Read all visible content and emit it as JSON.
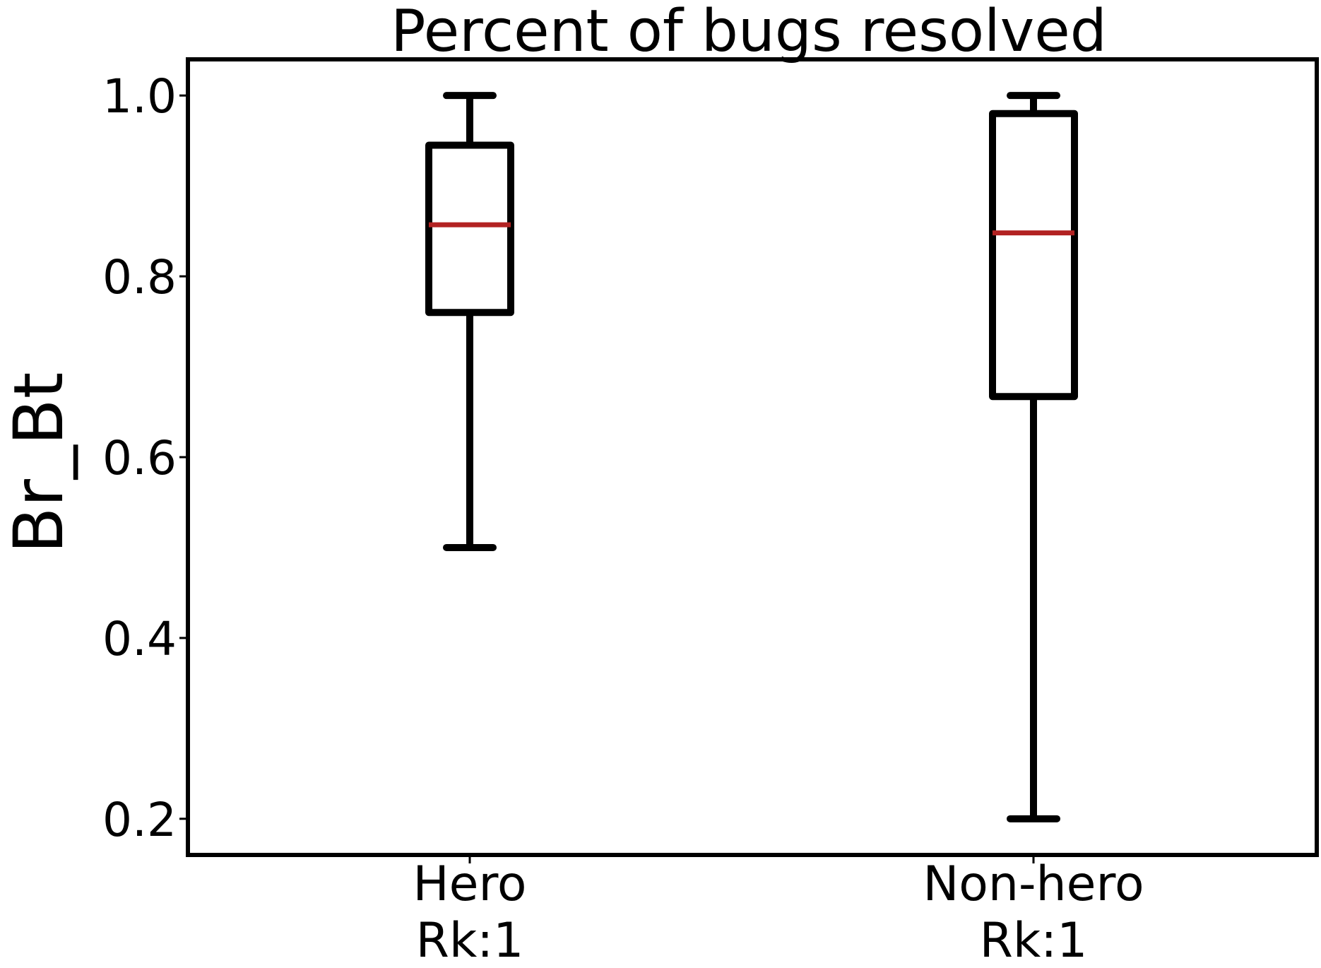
{
  "chart_data": {
    "type": "box",
    "title": "Percent of bugs resolved",
    "ylabel": "Br_Bt",
    "xlabel": "",
    "ylim": [
      0.16,
      1.04
    ],
    "yticks": [
      "0.2",
      "0.4",
      "0.6",
      "0.8",
      "1.0"
    ],
    "grid": false,
    "categories": [
      {
        "line1": "Hero",
        "line2": "Rk:1"
      },
      {
        "line1": "Non-hero",
        "line2": "Rk:1"
      }
    ],
    "boxes": [
      {
        "whisker_low": 0.5,
        "q1": 0.76,
        "median": 0.857,
        "q3": 0.945,
        "whisker_high": 1.0
      },
      {
        "whisker_low": 0.2,
        "q1": 0.667,
        "median": 0.848,
        "q3": 0.98,
        "whisker_high": 1.0
      }
    ],
    "colors": {
      "box": "#000000",
      "median": "#b22222"
    }
  }
}
